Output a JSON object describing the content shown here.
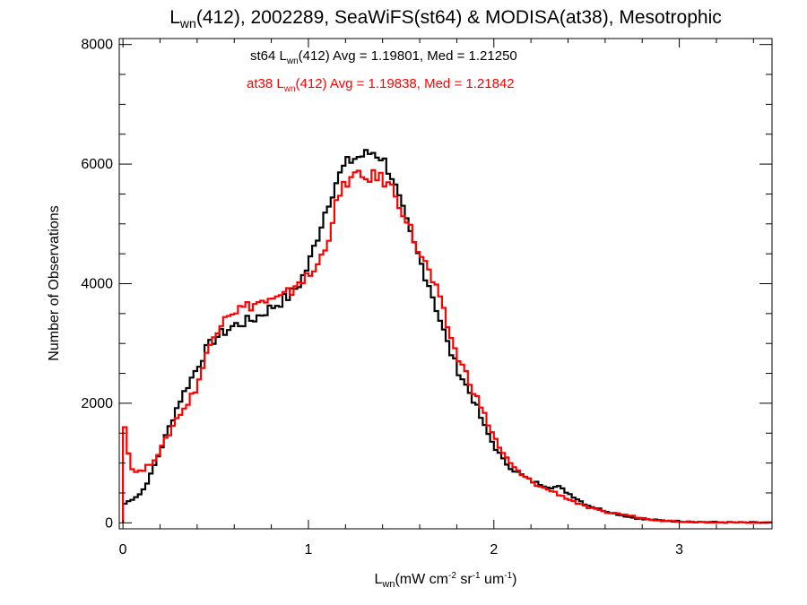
{
  "chart_data": {
    "type": "line",
    "title": {
      "prefix": "L",
      "sub": "wn",
      "rest": "(412), 2002289, SeaWiFS(st64) & MODISA(at38), Mesotrophic"
    },
    "xlabel": {
      "prefix": "L",
      "sub": "wn",
      "units": [
        "(mW cm",
        "-2",
        " sr",
        "-1",
        " um",
        "-1",
        ")"
      ]
    },
    "ylabel": "Number of Observations",
    "xlim": [
      -0.02,
      3.5
    ],
    "ylim": [
      -100,
      8100
    ],
    "xticks": [
      0,
      1,
      2,
      3
    ],
    "xtick_labels": [
      "0",
      "1",
      "2",
      "3"
    ],
    "yticks": [
      0,
      2000,
      4000,
      6000,
      8000
    ],
    "ytick_labels": [
      "0",
      "2000",
      "4000",
      "6000",
      "8000"
    ],
    "x_minor_step": 0.2,
    "y_minor_step": 500,
    "grid": false,
    "step_width": 0.02,
    "annotations": [
      {
        "sensor": "st64",
        "param_prefix": "L",
        "param_sub": "wn",
        "text": "(412) Avg = 1.19801, Med = 1.21250",
        "color": "#000000"
      },
      {
        "sensor": "at38",
        "param_prefix": "L",
        "param_sub": "wn",
        "text": "(412) Avg = 1.19838, Med = 1.21842",
        "color": "#ff0000"
      }
    ],
    "series": [
      {
        "color": "#000000",
        "points": [
          [
            0.0,
            300
          ],
          [
            0.05,
            400
          ],
          [
            0.1,
            500
          ],
          [
            0.15,
            800
          ],
          [
            0.2,
            1200
          ],
          [
            0.25,
            1600
          ],
          [
            0.3,
            2000
          ],
          [
            0.35,
            2300
          ],
          [
            0.4,
            2600
          ],
          [
            0.45,
            2900
          ],
          [
            0.5,
            3100
          ],
          [
            0.55,
            3200
          ],
          [
            0.6,
            3300
          ],
          [
            0.65,
            3350
          ],
          [
            0.7,
            3400
          ],
          [
            0.75,
            3500
          ],
          [
            0.8,
            3600
          ],
          [
            0.85,
            3700
          ],
          [
            0.9,
            3800
          ],
          [
            0.95,
            4000
          ],
          [
            1.0,
            4300
          ],
          [
            1.05,
            4800
          ],
          [
            1.1,
            5300
          ],
          [
            1.15,
            5700
          ],
          [
            1.2,
            6000
          ],
          [
            1.25,
            6100
          ],
          [
            1.3,
            6150
          ],
          [
            1.35,
            6200
          ],
          [
            1.4,
            6100
          ],
          [
            1.45,
            5800
          ],
          [
            1.5,
            5300
          ],
          [
            1.55,
            4800
          ],
          [
            1.6,
            4400
          ],
          [
            1.65,
            4000
          ],
          [
            1.7,
            3500
          ],
          [
            1.75,
            3000
          ],
          [
            1.8,
            2600
          ],
          [
            1.85,
            2300
          ],
          [
            1.9,
            2000
          ],
          [
            1.95,
            1600
          ],
          [
            2.0,
            1300
          ],
          [
            2.05,
            1050
          ],
          [
            2.1,
            900
          ],
          [
            2.15,
            800
          ],
          [
            2.2,
            700
          ],
          [
            2.25,
            650
          ],
          [
            2.3,
            600
          ],
          [
            2.35,
            600
          ],
          [
            2.4,
            500
          ],
          [
            2.45,
            400
          ],
          [
            2.5,
            300
          ],
          [
            2.6,
            200
          ],
          [
            2.7,
            120
          ],
          [
            2.8,
            60
          ],
          [
            2.9,
            40
          ],
          [
            3.0,
            25
          ],
          [
            3.1,
            15
          ],
          [
            3.2,
            10
          ],
          [
            3.3,
            5
          ],
          [
            3.4,
            3
          ],
          [
            3.5,
            2
          ]
        ]
      },
      {
        "color": "#ff0000",
        "points": [
          [
            0.0,
            2000
          ],
          [
            0.02,
            1300
          ],
          [
            0.05,
            900
          ],
          [
            0.1,
            850
          ],
          [
            0.15,
            1000
          ],
          [
            0.2,
            1200
          ],
          [
            0.25,
            1500
          ],
          [
            0.3,
            1800
          ],
          [
            0.35,
            2000
          ],
          [
            0.4,
            2300
          ],
          [
            0.45,
            2800
          ],
          [
            0.5,
            3200
          ],
          [
            0.55,
            3500
          ],
          [
            0.6,
            3550
          ],
          [
            0.65,
            3600
          ],
          [
            0.7,
            3650
          ],
          [
            0.75,
            3700
          ],
          [
            0.8,
            3700
          ],
          [
            0.85,
            3750
          ],
          [
            0.9,
            3850
          ],
          [
            0.95,
            4050
          ],
          [
            1.0,
            4100
          ],
          [
            1.05,
            4300
          ],
          [
            1.1,
            4700
          ],
          [
            1.15,
            5300
          ],
          [
            1.2,
            5700
          ],
          [
            1.25,
            5800
          ],
          [
            1.3,
            5750
          ],
          [
            1.35,
            5800
          ],
          [
            1.4,
            5750
          ],
          [
            1.45,
            5600
          ],
          [
            1.5,
            5300
          ],
          [
            1.55,
            4900
          ],
          [
            1.6,
            4500
          ],
          [
            1.65,
            4200
          ],
          [
            1.7,
            3800
          ],
          [
            1.75,
            3300
          ],
          [
            1.8,
            2800
          ],
          [
            1.85,
            2500
          ],
          [
            1.9,
            2150
          ],
          [
            1.95,
            1800
          ],
          [
            2.0,
            1450
          ],
          [
            2.05,
            1150
          ],
          [
            2.1,
            950
          ],
          [
            2.15,
            800
          ],
          [
            2.2,
            700
          ],
          [
            2.25,
            600
          ],
          [
            2.3,
            550
          ],
          [
            2.35,
            480
          ],
          [
            2.4,
            400
          ],
          [
            2.45,
            330
          ],
          [
            2.5,
            260
          ],
          [
            2.6,
            180
          ],
          [
            2.7,
            140
          ],
          [
            2.8,
            80
          ],
          [
            2.9,
            40
          ],
          [
            3.0,
            25
          ],
          [
            3.1,
            15
          ],
          [
            3.2,
            10
          ],
          [
            3.3,
            5
          ],
          [
            3.4,
            3
          ],
          [
            3.5,
            2
          ]
        ]
      }
    ]
  }
}
